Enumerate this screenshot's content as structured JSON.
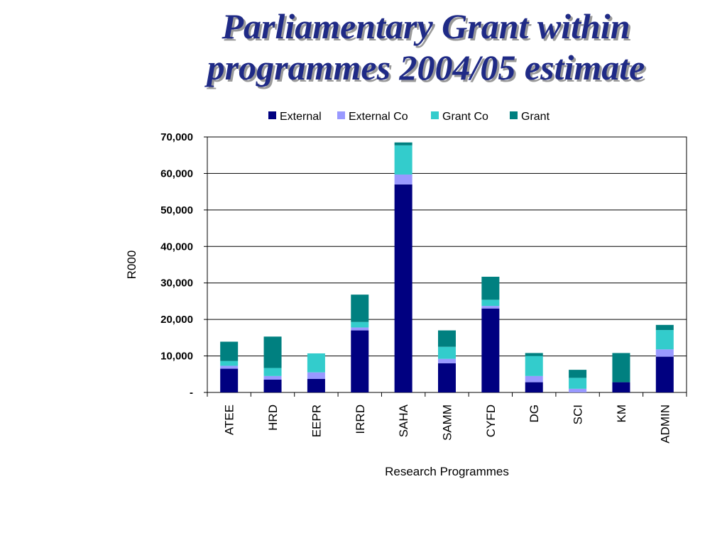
{
  "title_lines": [
    "Parliamentary Grant within",
    "programmes 2004/05 estimate"
  ],
  "chart_data": {
    "type": "bar",
    "stacked": true,
    "categories": [
      "ATEE",
      "HRD",
      "EEPR",
      "IRRD",
      "SAHA",
      "SAMM",
      "CYFD",
      "DG",
      "SCI",
      "KM",
      "ADMIN"
    ],
    "series": [
      {
        "name": "External",
        "color": "#000080",
        "values": [
          6500,
          3500,
          3700,
          17000,
          57000,
          8000,
          23000,
          2800,
          0,
          2800,
          9800
        ]
      },
      {
        "name": "External Co",
        "color": "#9999ff",
        "values": [
          800,
          1000,
          1800,
          800,
          2700,
          1200,
          700,
          1700,
          1000,
          0,
          2000
        ]
      },
      {
        "name": "Grant Co",
        "color": "#33cccc",
        "values": [
          1300,
          2200,
          5200,
          1500,
          8000,
          3300,
          1700,
          5500,
          3000,
          0,
          5300
        ]
      },
      {
        "name": "Grant",
        "color": "#008080",
        "values": [
          5300,
          8600,
          0,
          7500,
          800,
          4500,
          6300,
          800,
          2200,
          8000,
          1400
        ]
      }
    ],
    "ylim": [
      0,
      70000
    ],
    "yticks": [
      0,
      10000,
      20000,
      30000,
      40000,
      50000,
      60000,
      70000
    ],
    "ytick_labels": [
      "-",
      "10,000",
      "20,000",
      "30,000",
      "40,000",
      "50,000",
      "60,000",
      "70,000"
    ],
    "xlabel": "Research Programmes",
    "ylabel": "R000",
    "grid": true,
    "legend_position": "top"
  }
}
